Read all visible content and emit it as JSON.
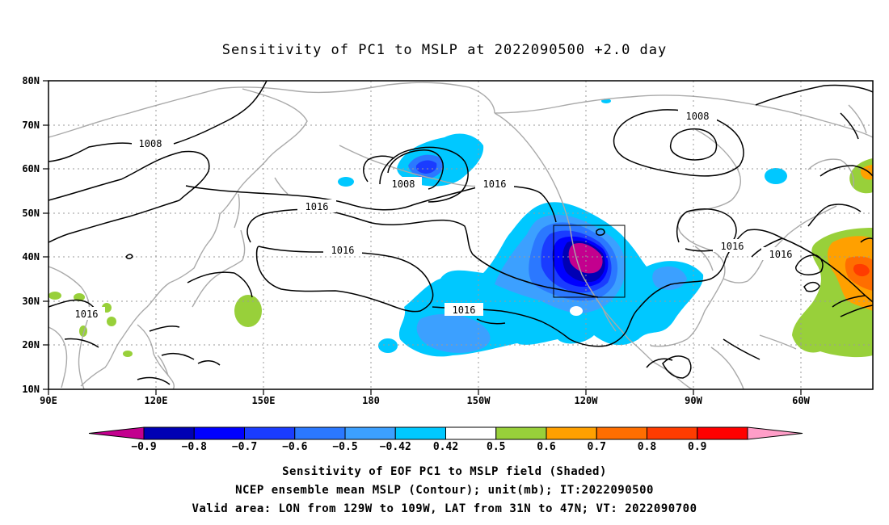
{
  "title": "Sensitivity of PC1 to MSLP at 2022090500 +2.0 day",
  "map": {
    "lat_labels": [
      "80N",
      "70N",
      "60N",
      "50N",
      "40N",
      "30N",
      "20N",
      "10N"
    ],
    "lon_labels": [
      "90E",
      "120E",
      "150E",
      "180",
      "150W",
      "120W",
      "90W",
      "60W"
    ],
    "lon_range": [
      "90E",
      "35W"
    ],
    "lat_range": [
      "10N",
      "80N"
    ],
    "grid": "dotted",
    "contour_labels": {
      "aleutian_low": "1008",
      "siberia": "1008",
      "canada_low": "1008",
      "pacific_high_north": "1016",
      "pacific_high_mid": "1016",
      "pacific_high_south": "1016",
      "west_coast": "1016",
      "atlantic": "1016",
      "east_us": "1016",
      "south_asia": "1016"
    },
    "target_box": {
      "lon": [
        "129W",
        "109W"
      ],
      "lat": [
        "31N",
        "47N"
      ]
    }
  },
  "colorbar": {
    "colors": [
      "#c3008e",
      "#0000b4",
      "#0000ff",
      "#1a3cff",
      "#2b78ff",
      "#3ca0ff",
      "#00c8ff",
      "#ffffff",
      "#98d03a",
      "#ffa000",
      "#ff6e00",
      "#ff3c00",
      "#ff0000",
      "#ff9ec8"
    ],
    "labels": [
      "-0.9",
      "-0.8",
      "-0.7",
      "-0.6",
      "-0.5",
      "-0.42",
      "0.42",
      "0.5",
      "0.6",
      "0.7",
      "0.8",
      "0.9"
    ]
  },
  "caption": {
    "line1": "Sensitivity of EOF PC1 to MSLP field (Shaded)",
    "line2": "NCEP ensemble mean MSLP (Contour); unit(mb); IT:2022090500",
    "line3": "Valid area: LON from 129W to 109W, LAT from 31N to 47N; VT: 2022090700"
  }
}
